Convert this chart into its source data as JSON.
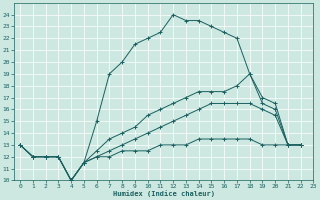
{
  "xlabel": "Humidex (Indice chaleur)",
  "xlim": [
    -0.5,
    23
  ],
  "ylim": [
    10,
    25
  ],
  "yticks": [
    10,
    11,
    12,
    13,
    14,
    15,
    16,
    17,
    18,
    19,
    20,
    21,
    22,
    23,
    24
  ],
  "xticks": [
    0,
    1,
    2,
    3,
    4,
    5,
    6,
    7,
    8,
    9,
    10,
    11,
    12,
    13,
    14,
    15,
    16,
    17,
    18,
    19,
    20,
    21,
    22,
    23
  ],
  "bg_color": "#cce8e0",
  "line_color": "#1a6060",
  "grid_color": "#ffffff",
  "lines": [
    {
      "x": [
        0,
        1,
        2,
        3,
        4,
        5,
        6,
        7,
        8,
        9,
        10,
        11,
        12,
        13,
        14,
        15,
        16,
        17,
        18,
        19,
        20,
        21,
        22
      ],
      "y": [
        13,
        12,
        12,
        12,
        10,
        11.5,
        15,
        19,
        20,
        21.5,
        22,
        22.5,
        24,
        23.5,
        23.5,
        23,
        22.5,
        22,
        19,
        16.5,
        16,
        13,
        13
      ]
    },
    {
      "x": [
        0,
        1,
        2,
        3,
        4,
        5,
        6,
        7,
        8,
        9,
        10,
        11,
        12,
        13,
        14,
        15,
        16,
        17,
        18,
        19,
        20,
        21,
        22
      ],
      "y": [
        13,
        12,
        12,
        12,
        10,
        11.5,
        12.5,
        13.5,
        14.0,
        14.5,
        15.5,
        16.0,
        16.5,
        17.0,
        17.5,
        17.5,
        17.5,
        18.0,
        19.0,
        17.0,
        16.5,
        13,
        13
      ]
    },
    {
      "x": [
        0,
        1,
        2,
        3,
        4,
        5,
        6,
        7,
        8,
        9,
        10,
        11,
        12,
        13,
        14,
        15,
        16,
        17,
        18,
        19,
        20,
        21,
        22
      ],
      "y": [
        13,
        12,
        12,
        12,
        10,
        11.5,
        12.0,
        12.5,
        13.0,
        13.5,
        14.0,
        14.5,
        15.0,
        15.5,
        16.0,
        16.5,
        16.5,
        16.5,
        16.5,
        16.0,
        15.5,
        13,
        13
      ]
    },
    {
      "x": [
        0,
        1,
        2,
        3,
        4,
        5,
        6,
        7,
        8,
        9,
        10,
        11,
        12,
        13,
        14,
        15,
        16,
        17,
        18,
        19,
        20,
        21,
        22
      ],
      "y": [
        13,
        12,
        12,
        12,
        10,
        11.5,
        12.0,
        12.0,
        12.5,
        12.5,
        12.5,
        13.0,
        13.0,
        13.0,
        13.5,
        13.5,
        13.5,
        13.5,
        13.5,
        13.0,
        13.0,
        13,
        13
      ]
    }
  ]
}
